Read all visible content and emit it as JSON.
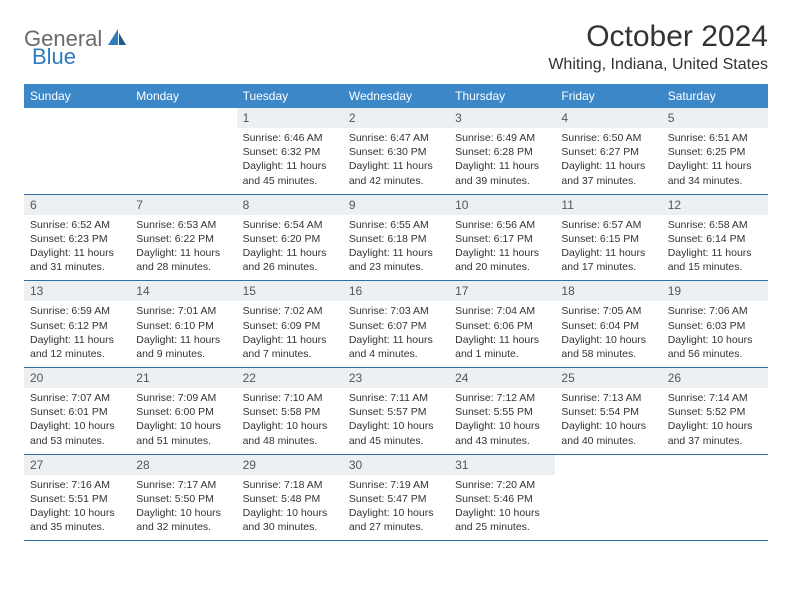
{
  "brand": {
    "part1": "General",
    "part2": "Blue"
  },
  "title": "October 2024",
  "location": "Whiting, Indiana, United States",
  "colors": {
    "header_bg": "#3b87c8",
    "header_text": "#ffffff",
    "daynum_bg": "#edf0f2",
    "border": "#2f6fa8",
    "logo_gray": "#6b6b6b",
    "logo_blue": "#2f7bbf"
  },
  "weekdays": [
    "Sunday",
    "Monday",
    "Tuesday",
    "Wednesday",
    "Thursday",
    "Friday",
    "Saturday"
  ],
  "weeks": [
    [
      {
        "n": "",
        "sr": "",
        "ss": "",
        "dl": ""
      },
      {
        "n": "",
        "sr": "",
        "ss": "",
        "dl": ""
      },
      {
        "n": "1",
        "sr": "Sunrise: 6:46 AM",
        "ss": "Sunset: 6:32 PM",
        "dl": "Daylight: 11 hours and 45 minutes."
      },
      {
        "n": "2",
        "sr": "Sunrise: 6:47 AM",
        "ss": "Sunset: 6:30 PM",
        "dl": "Daylight: 11 hours and 42 minutes."
      },
      {
        "n": "3",
        "sr": "Sunrise: 6:49 AM",
        "ss": "Sunset: 6:28 PM",
        "dl": "Daylight: 11 hours and 39 minutes."
      },
      {
        "n": "4",
        "sr": "Sunrise: 6:50 AM",
        "ss": "Sunset: 6:27 PM",
        "dl": "Daylight: 11 hours and 37 minutes."
      },
      {
        "n": "5",
        "sr": "Sunrise: 6:51 AM",
        "ss": "Sunset: 6:25 PM",
        "dl": "Daylight: 11 hours and 34 minutes."
      }
    ],
    [
      {
        "n": "6",
        "sr": "Sunrise: 6:52 AM",
        "ss": "Sunset: 6:23 PM",
        "dl": "Daylight: 11 hours and 31 minutes."
      },
      {
        "n": "7",
        "sr": "Sunrise: 6:53 AM",
        "ss": "Sunset: 6:22 PM",
        "dl": "Daylight: 11 hours and 28 minutes."
      },
      {
        "n": "8",
        "sr": "Sunrise: 6:54 AM",
        "ss": "Sunset: 6:20 PM",
        "dl": "Daylight: 11 hours and 26 minutes."
      },
      {
        "n": "9",
        "sr": "Sunrise: 6:55 AM",
        "ss": "Sunset: 6:18 PM",
        "dl": "Daylight: 11 hours and 23 minutes."
      },
      {
        "n": "10",
        "sr": "Sunrise: 6:56 AM",
        "ss": "Sunset: 6:17 PM",
        "dl": "Daylight: 11 hours and 20 minutes."
      },
      {
        "n": "11",
        "sr": "Sunrise: 6:57 AM",
        "ss": "Sunset: 6:15 PM",
        "dl": "Daylight: 11 hours and 17 minutes."
      },
      {
        "n": "12",
        "sr": "Sunrise: 6:58 AM",
        "ss": "Sunset: 6:14 PM",
        "dl": "Daylight: 11 hours and 15 minutes."
      }
    ],
    [
      {
        "n": "13",
        "sr": "Sunrise: 6:59 AM",
        "ss": "Sunset: 6:12 PM",
        "dl": "Daylight: 11 hours and 12 minutes."
      },
      {
        "n": "14",
        "sr": "Sunrise: 7:01 AM",
        "ss": "Sunset: 6:10 PM",
        "dl": "Daylight: 11 hours and 9 minutes."
      },
      {
        "n": "15",
        "sr": "Sunrise: 7:02 AM",
        "ss": "Sunset: 6:09 PM",
        "dl": "Daylight: 11 hours and 7 minutes."
      },
      {
        "n": "16",
        "sr": "Sunrise: 7:03 AM",
        "ss": "Sunset: 6:07 PM",
        "dl": "Daylight: 11 hours and 4 minutes."
      },
      {
        "n": "17",
        "sr": "Sunrise: 7:04 AM",
        "ss": "Sunset: 6:06 PM",
        "dl": "Daylight: 11 hours and 1 minute."
      },
      {
        "n": "18",
        "sr": "Sunrise: 7:05 AM",
        "ss": "Sunset: 6:04 PM",
        "dl": "Daylight: 10 hours and 58 minutes."
      },
      {
        "n": "19",
        "sr": "Sunrise: 7:06 AM",
        "ss": "Sunset: 6:03 PM",
        "dl": "Daylight: 10 hours and 56 minutes."
      }
    ],
    [
      {
        "n": "20",
        "sr": "Sunrise: 7:07 AM",
        "ss": "Sunset: 6:01 PM",
        "dl": "Daylight: 10 hours and 53 minutes."
      },
      {
        "n": "21",
        "sr": "Sunrise: 7:09 AM",
        "ss": "Sunset: 6:00 PM",
        "dl": "Daylight: 10 hours and 51 minutes."
      },
      {
        "n": "22",
        "sr": "Sunrise: 7:10 AM",
        "ss": "Sunset: 5:58 PM",
        "dl": "Daylight: 10 hours and 48 minutes."
      },
      {
        "n": "23",
        "sr": "Sunrise: 7:11 AM",
        "ss": "Sunset: 5:57 PM",
        "dl": "Daylight: 10 hours and 45 minutes."
      },
      {
        "n": "24",
        "sr": "Sunrise: 7:12 AM",
        "ss": "Sunset: 5:55 PM",
        "dl": "Daylight: 10 hours and 43 minutes."
      },
      {
        "n": "25",
        "sr": "Sunrise: 7:13 AM",
        "ss": "Sunset: 5:54 PM",
        "dl": "Daylight: 10 hours and 40 minutes."
      },
      {
        "n": "26",
        "sr": "Sunrise: 7:14 AM",
        "ss": "Sunset: 5:52 PM",
        "dl": "Daylight: 10 hours and 37 minutes."
      }
    ],
    [
      {
        "n": "27",
        "sr": "Sunrise: 7:16 AM",
        "ss": "Sunset: 5:51 PM",
        "dl": "Daylight: 10 hours and 35 minutes."
      },
      {
        "n": "28",
        "sr": "Sunrise: 7:17 AM",
        "ss": "Sunset: 5:50 PM",
        "dl": "Daylight: 10 hours and 32 minutes."
      },
      {
        "n": "29",
        "sr": "Sunrise: 7:18 AM",
        "ss": "Sunset: 5:48 PM",
        "dl": "Daylight: 10 hours and 30 minutes."
      },
      {
        "n": "30",
        "sr": "Sunrise: 7:19 AM",
        "ss": "Sunset: 5:47 PM",
        "dl": "Daylight: 10 hours and 27 minutes."
      },
      {
        "n": "31",
        "sr": "Sunrise: 7:20 AM",
        "ss": "Sunset: 5:46 PM",
        "dl": "Daylight: 10 hours and 25 minutes."
      },
      {
        "n": "",
        "sr": "",
        "ss": "",
        "dl": ""
      },
      {
        "n": "",
        "sr": "",
        "ss": "",
        "dl": ""
      }
    ]
  ]
}
